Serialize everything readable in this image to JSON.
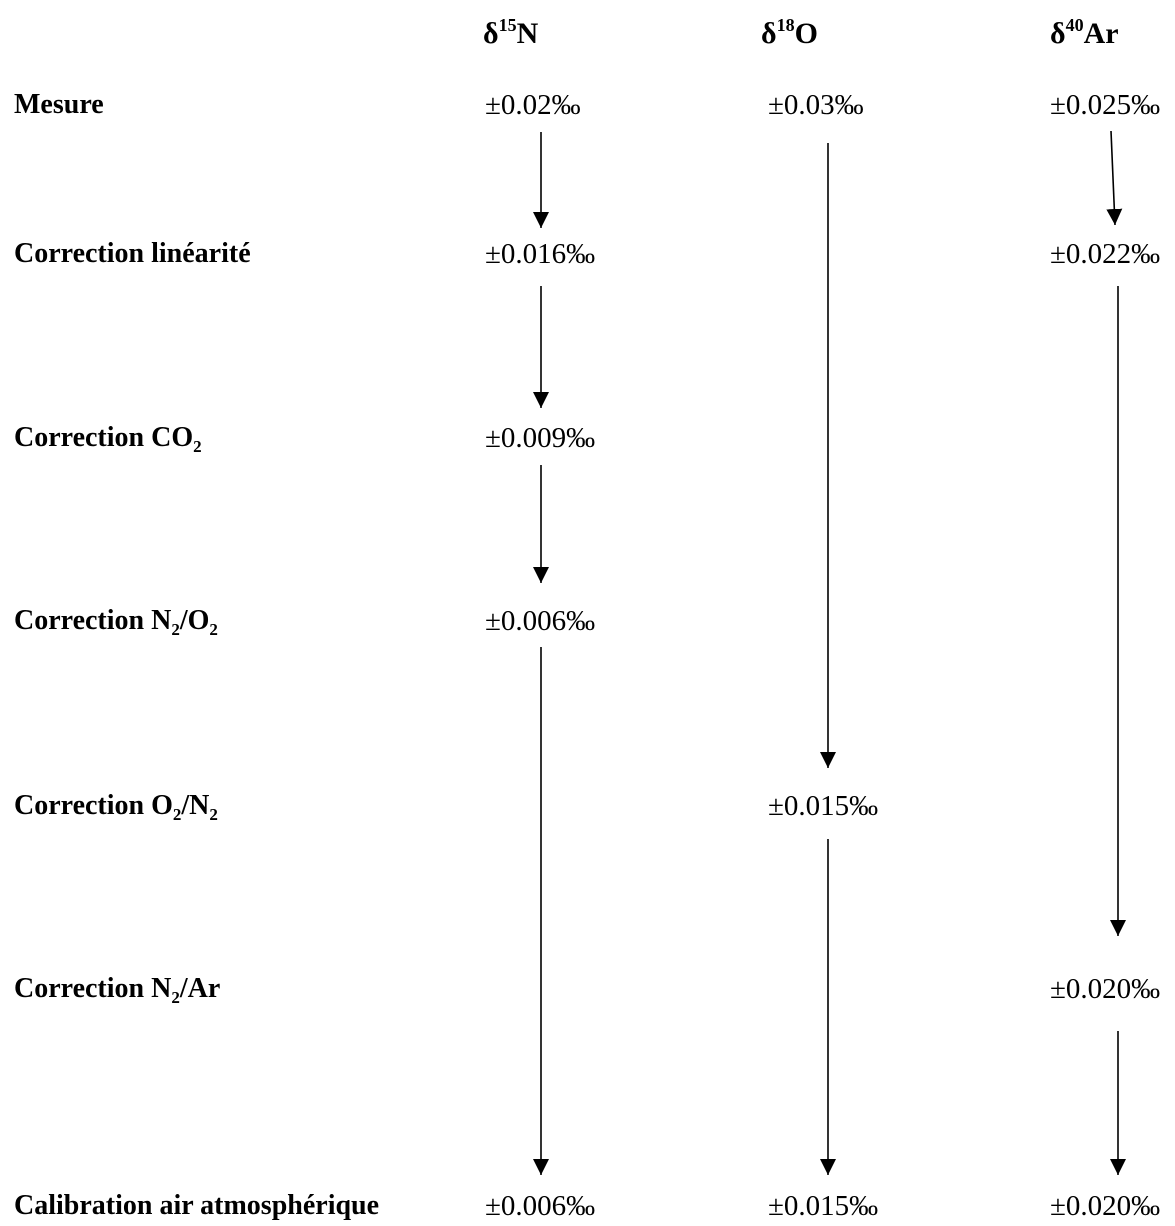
{
  "columns": [
    {
      "symbol": "δ",
      "mass": "15",
      "element": "N"
    },
    {
      "symbol": "δ",
      "mass": "18",
      "element": "O"
    },
    {
      "symbol": "δ",
      "mass": "40",
      "element": "Ar"
    }
  ],
  "rows": [
    {
      "label": "Mesure",
      "values": [
        "±0.02‰",
        "±0.03‰",
        "±0.025‰"
      ]
    },
    {
      "label": "Correction linéarité",
      "values": [
        "±0.016‰",
        "",
        "±0.022‰"
      ]
    },
    {
      "label_parts": [
        "Correction CO",
        "2",
        ""
      ],
      "values": [
        "±0.009‰",
        "",
        ""
      ]
    },
    {
      "label_parts": [
        "Correction N",
        "2",
        "/O",
        "2"
      ],
      "values": [
        "±0.006‰",
        "",
        ""
      ]
    },
    {
      "label_parts": [
        "Correction O",
        "2",
        "/N",
        "2"
      ],
      "values": [
        "",
        "±0.015‰",
        ""
      ]
    },
    {
      "label_parts": [
        "Correction N",
        "2",
        "/Ar"
      ],
      "values": [
        "",
        "",
        "±0.020‰"
      ]
    },
    {
      "label": "Calibration air atmosphérique",
      "values": [
        "±0.006‰",
        "±0.015‰",
        "±0.020‰"
      ]
    }
  ]
}
